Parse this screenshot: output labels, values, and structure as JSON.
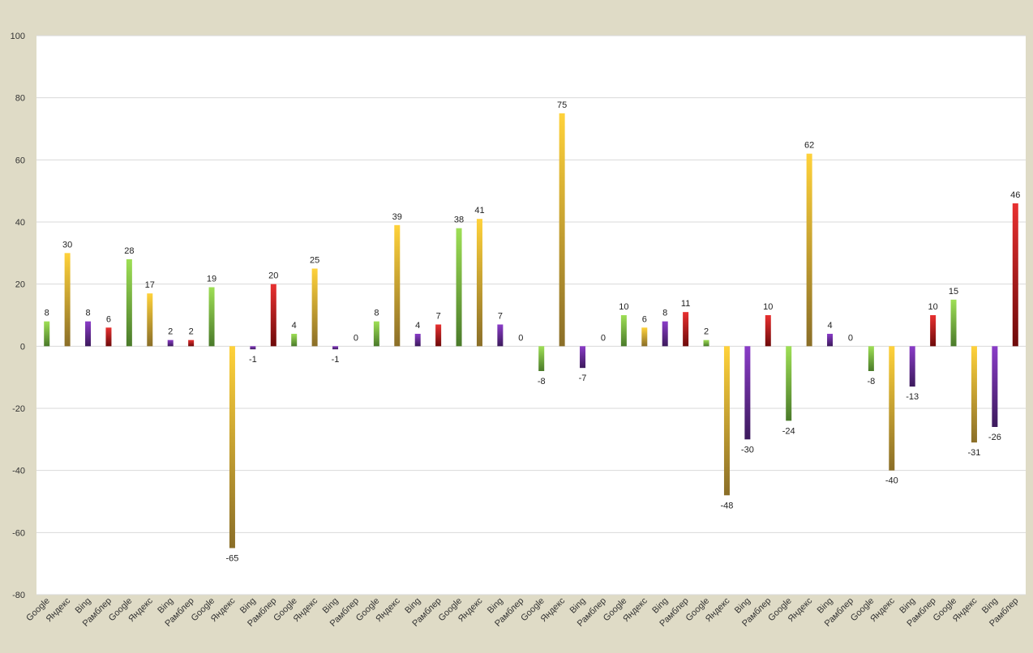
{
  "chart_data": {
    "type": "bar",
    "ylim": [
      -80,
      100
    ],
    "ytick_step": 20,
    "grid": true,
    "legend": "none",
    "categories": [
      "Google",
      "Яндекс",
      "Bing",
      "Рамблер",
      "Google",
      "Яндекс",
      "Bing",
      "Рамблер",
      "Google",
      "Яндекс",
      "Bing",
      "Рамблер",
      "Google",
      "Яндекс",
      "Bing",
      "Рамблер",
      "Google",
      "Яндекс",
      "Bing",
      "Рамблер",
      "Google",
      "Яндекс",
      "Bing",
      "Рамблер",
      "Google",
      "Яндекс",
      "Bing",
      "Рамблер",
      "Google",
      "Яндекс",
      "Bing",
      "Рамблер",
      "Google",
      "Яндекс",
      "Bing",
      "Рамблер",
      "Google",
      "Яндекс",
      "Bing",
      "Рамблер",
      "Google",
      "Яндекс",
      "Bing",
      "Рамблер",
      "Google",
      "Яндекс",
      "Bing",
      "Рамблер"
    ],
    "values": [
      8,
      30,
      8,
      6,
      28,
      17,
      2,
      2,
      19,
      -65,
      -1,
      20,
      4,
      25,
      -1,
      0,
      8,
      39,
      4,
      7,
      38,
      41,
      7,
      0,
      -8,
      75,
      -7,
      0,
      10,
      6,
      8,
      11,
      2,
      -48,
      -30,
      10,
      -24,
      62,
      4,
      0,
      -8,
      -40,
      -13,
      10,
      15,
      -31,
      -26,
      46
    ],
    "colors": {
      "Google": [
        "#9edf55",
        "#4a7a2a"
      ],
      "Яндекс": [
        "#ffd23a",
        "#8a6e28"
      ],
      "Bing": [
        "#8a3cc8",
        "#3c1a5c"
      ],
      "Рамблер": [
        "#e83030",
        "#6e0a0a"
      ]
    }
  }
}
